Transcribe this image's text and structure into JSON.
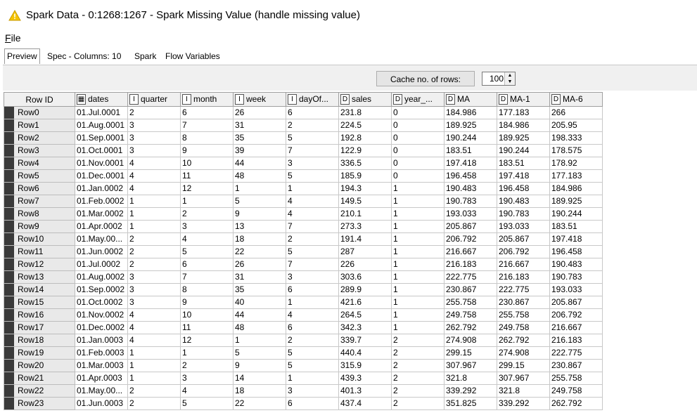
{
  "window": {
    "title": "Spark Data - 0:1268:1267 - Spark Missing Value (handle missing value)",
    "icon": "warning-triangle-icon"
  },
  "menu": {
    "file_label": "File",
    "file_mnemonic": "F",
    "file_rest": "ile"
  },
  "tabs": [
    {
      "label": "Preview",
      "active": true
    },
    {
      "label": "Spec - Columns: 10",
      "active": false
    },
    {
      "label": "Spark",
      "active": false
    },
    {
      "label": "Flow Variables",
      "active": false
    }
  ],
  "cache": {
    "button_label": "Cache no. of rows:",
    "value": "100"
  },
  "table": {
    "columns": [
      {
        "label": "Row ID",
        "type": ""
      },
      {
        "label": "dates",
        "type": "date"
      },
      {
        "label": "quarter",
        "type": "I"
      },
      {
        "label": "month",
        "type": "I"
      },
      {
        "label": "week",
        "type": "I"
      },
      {
        "label": "dayOf...",
        "type": "I"
      },
      {
        "label": "sales",
        "type": "D"
      },
      {
        "label": "year_...",
        "type": "D"
      },
      {
        "label": "MA",
        "type": "D"
      },
      {
        "label": "MA-1",
        "type": "D"
      },
      {
        "label": "MA-6",
        "type": "D"
      }
    ],
    "rows": [
      [
        "Row0",
        "01.Jul.0001",
        "2",
        "6",
        "26",
        "6",
        "231.8",
        "0",
        "184.986",
        "177.183",
        "266"
      ],
      [
        "Row1",
        "01.Aug.0001",
        "3",
        "7",
        "31",
        "2",
        "224.5",
        "0",
        "189.925",
        "184.986",
        "205.95"
      ],
      [
        "Row2",
        "01.Sep.0001",
        "3",
        "8",
        "35",
        "5",
        "192.8",
        "0",
        "190.244",
        "189.925",
        "198.333"
      ],
      [
        "Row3",
        "01.Oct.0001",
        "3",
        "9",
        "39",
        "7",
        "122.9",
        "0",
        "183.51",
        "190.244",
        "178.575"
      ],
      [
        "Row4",
        "01.Nov.0001",
        "4",
        "10",
        "44",
        "3",
        "336.5",
        "0",
        "197.418",
        "183.51",
        "178.92"
      ],
      [
        "Row5",
        "01.Dec.0001",
        "4",
        "11",
        "48",
        "5",
        "185.9",
        "0",
        "196.458",
        "197.418",
        "177.183"
      ],
      [
        "Row6",
        "01.Jan.0002",
        "4",
        "12",
        "1",
        "1",
        "194.3",
        "1",
        "190.483",
        "196.458",
        "184.986"
      ],
      [
        "Row7",
        "01.Feb.0002",
        "1",
        "1",
        "5",
        "4",
        "149.5",
        "1",
        "190.783",
        "190.483",
        "189.925"
      ],
      [
        "Row8",
        "01.Mar.0002",
        "1",
        "2",
        "9",
        "4",
        "210.1",
        "1",
        "193.033",
        "190.783",
        "190.244"
      ],
      [
        "Row9",
        "01.Apr.0002",
        "1",
        "3",
        "13",
        "7",
        "273.3",
        "1",
        "205.867",
        "193.033",
        "183.51"
      ],
      [
        "Row10",
        "01.May.00...",
        "2",
        "4",
        "18",
        "2",
        "191.4",
        "1",
        "206.792",
        "205.867",
        "197.418"
      ],
      [
        "Row11",
        "01.Jun.0002",
        "2",
        "5",
        "22",
        "5",
        "287",
        "1",
        "216.667",
        "206.792",
        "196.458"
      ],
      [
        "Row12",
        "01.Jul.0002",
        "2",
        "6",
        "26",
        "7",
        "226",
        "1",
        "216.183",
        "216.667",
        "190.483"
      ],
      [
        "Row13",
        "01.Aug.0002",
        "3",
        "7",
        "31",
        "3",
        "303.6",
        "1",
        "222.775",
        "216.183",
        "190.783"
      ],
      [
        "Row14",
        "01.Sep.0002",
        "3",
        "8",
        "35",
        "6",
        "289.9",
        "1",
        "230.867",
        "222.775",
        "193.033"
      ],
      [
        "Row15",
        "01.Oct.0002",
        "3",
        "9",
        "40",
        "1",
        "421.6",
        "1",
        "255.758",
        "230.867",
        "205.867"
      ],
      [
        "Row16",
        "01.Nov.0002",
        "4",
        "10",
        "44",
        "4",
        "264.5",
        "1",
        "249.758",
        "255.758",
        "206.792"
      ],
      [
        "Row17",
        "01.Dec.0002",
        "4",
        "11",
        "48",
        "6",
        "342.3",
        "1",
        "262.792",
        "249.758",
        "216.667"
      ],
      [
        "Row18",
        "01.Jan.0003",
        "4",
        "12",
        "1",
        "2",
        "339.7",
        "2",
        "274.908",
        "262.792",
        "216.183"
      ],
      [
        "Row19",
        "01.Feb.0003",
        "1",
        "1",
        "5",
        "5",
        "440.4",
        "2",
        "299.15",
        "274.908",
        "222.775"
      ],
      [
        "Row20",
        "01.Mar.0003",
        "1",
        "2",
        "9",
        "5",
        "315.9",
        "2",
        "307.967",
        "299.15",
        "230.867"
      ],
      [
        "Row21",
        "01.Apr.0003",
        "1",
        "3",
        "14",
        "1",
        "439.3",
        "2",
        "321.8",
        "307.967",
        "255.758"
      ],
      [
        "Row22",
        "01.May.00...",
        "2",
        "4",
        "18",
        "3",
        "401.3",
        "2",
        "339.292",
        "321.8",
        "249.758"
      ],
      [
        "Row23",
        "01.Jun.0003",
        "2",
        "5",
        "22",
        "6",
        "437.4",
        "2",
        "351.825",
        "339.292",
        "262.792"
      ]
    ]
  }
}
